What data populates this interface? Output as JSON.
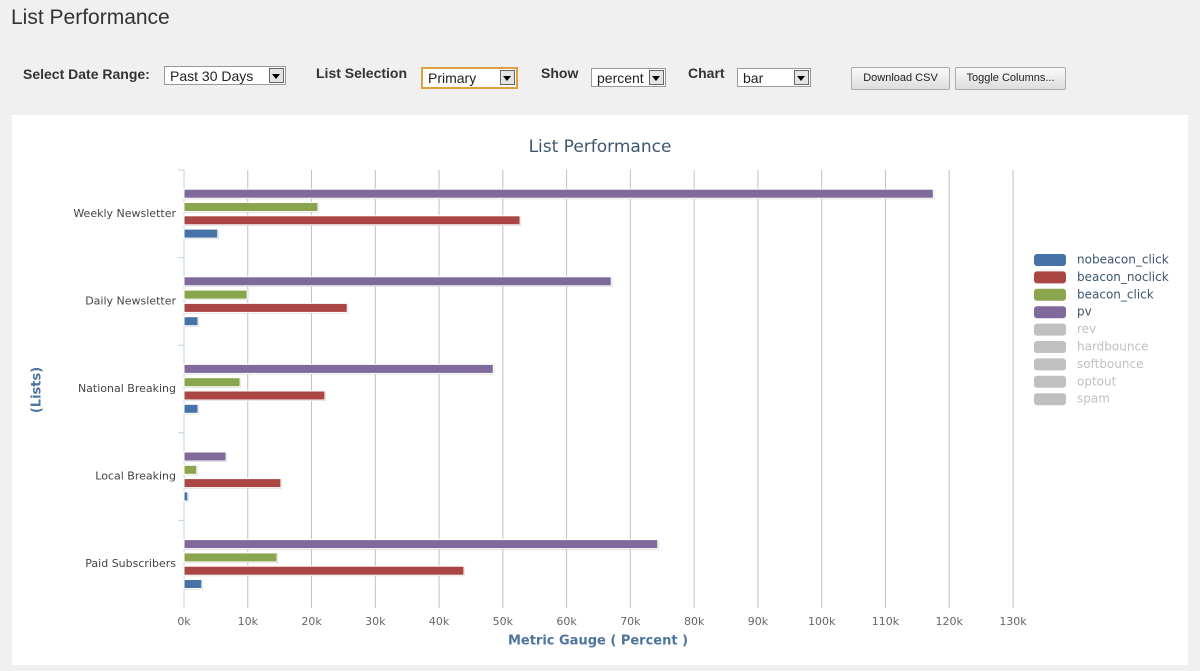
{
  "header": {
    "title": "List Performance"
  },
  "controls": [
    {
      "label": "Select Date Range:",
      "value": "Past 30 Days"
    },
    {
      "label": "List Selection",
      "value": "Primary"
    },
    {
      "label": "Show",
      "value": "percent"
    },
    {
      "label": "Chart",
      "value": "bar"
    }
  ],
  "buttons": [
    "Download CSV",
    "Toggle Columns..."
  ],
  "chart_data": {
    "type": "bar",
    "orientation": "horizontal",
    "title": "List Performance",
    "x_label": "Metric Gauge ( Percent )",
    "y_label": "(Lists)",
    "categories": [
      "Weekly Newsletter",
      "Daily Newsletter",
      "National Breaking",
      "Local Breaking",
      "Paid Subscribers"
    ],
    "series": [
      {
        "name": "nobeacon_click",
        "color": "#4572a7",
        "values": [
          5300,
          2200,
          2200,
          600,
          2800
        ]
      },
      {
        "name": "beacon_noclick",
        "color": "#aa4643",
        "values": [
          52700,
          25600,
          22100,
          15200,
          43900
        ]
      },
      {
        "name": "beacon_click",
        "color": "#89a54e",
        "values": [
          21000,
          9900,
          8800,
          2000,
          14600
        ]
      },
      {
        "name": "pv",
        "color": "#80699b",
        "values": [
          117500,
          67000,
          48500,
          6600,
          74300
        ]
      },
      {
        "name": "rev",
        "color": "#c0c0c0",
        "visible": false
      },
      {
        "name": "hardbounce",
        "color": "#c0c0c0",
        "visible": false
      },
      {
        "name": "softbounce",
        "color": "#c0c0c0",
        "visible": false
      },
      {
        "name": "optout",
        "color": "#c0c0c0",
        "visible": false
      },
      {
        "name": "spam",
        "color": "#c0c0c0",
        "visible": false
      }
    ],
    "xlim": [
      0,
      130000
    ],
    "xticks": [
      {
        "value": 0,
        "label": "0k"
      },
      {
        "value": 10000,
        "label": "10k"
      },
      {
        "value": 20000,
        "label": "20k"
      },
      {
        "value": 30000,
        "label": "30k"
      },
      {
        "value": 40000,
        "label": "40k"
      },
      {
        "value": 50000,
        "label": "50k"
      },
      {
        "value": 60000,
        "label": "60k"
      },
      {
        "value": 70000,
        "label": "70k"
      },
      {
        "value": 80000,
        "label": "80k"
      },
      {
        "value": 90000,
        "label": "90k"
      },
      {
        "value": 100000,
        "label": "100k"
      },
      {
        "value": 110000,
        "label": "110k"
      },
      {
        "value": 120000,
        "label": "120k"
      },
      {
        "value": 130000,
        "label": "130k"
      }
    ],
    "grid": true,
    "legend": "right"
  }
}
